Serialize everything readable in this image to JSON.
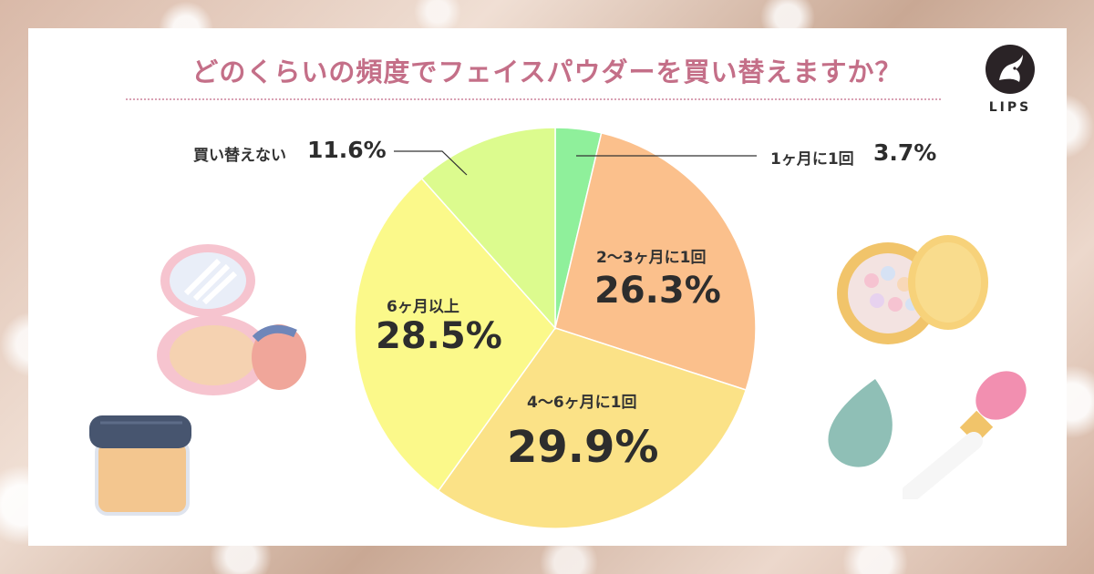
{
  "title": "どのくらいの頻度でフェイスパウダーを買い替えますか？",
  "logo": {
    "text": "LIPS"
  },
  "chart_data": {
    "type": "pie",
    "title": "どのくらいの頻度でフェイスパウダーを買い替えますか？",
    "start": "12 o'clock",
    "direction": "clockwise",
    "slices": [
      {
        "label": "1ヶ月に1回",
        "value": 3.7,
        "display": "3.7%",
        "color": "#8ff09b"
      },
      {
        "label": "2〜3ヶ月に1回",
        "value": 26.3,
        "display": "26.3%",
        "color": "#fbc08c"
      },
      {
        "label": "4〜6ヶ月に1回",
        "value": 29.9,
        "display": "29.9%",
        "color": "#fbe287"
      },
      {
        "label": "6ヶ月以上",
        "value": 28.5,
        "display": "28.5%",
        "color": "#fbf98a"
      },
      {
        "label": "買い替えない",
        "value": 11.6,
        "display": "11.6%",
        "color": "#dcfb8e"
      }
    ]
  }
}
